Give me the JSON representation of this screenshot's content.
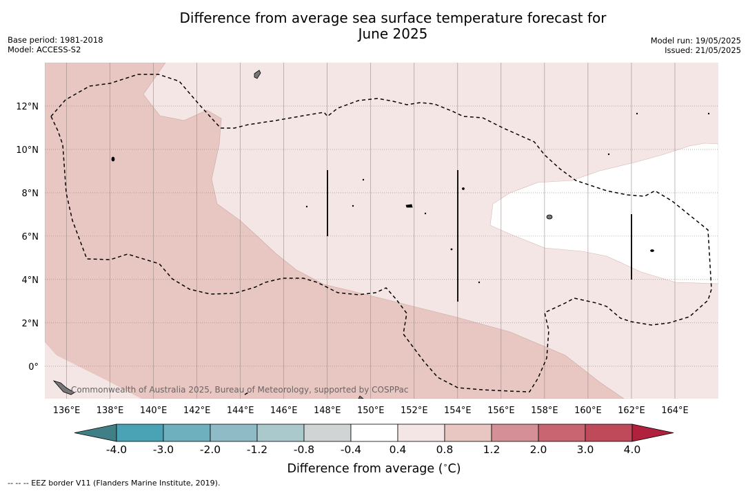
{
  "title": {
    "line1": "Difference from average sea surface temperature forecast for",
    "line2": "June 2025"
  },
  "meta_left": {
    "base_period": "Base period: 1981-2018",
    "model": "Model: ACCESS-S2"
  },
  "meta_right": {
    "model_run": "Model run: 19/05/2025",
    "issued": "Issued: 21/05/2025"
  },
  "map": {
    "lon_range": [
      135,
      166
    ],
    "lat_range": [
      -1.5,
      14
    ],
    "x_tick_labels": [
      "136°E",
      "138°E",
      "140°E",
      "142°E",
      "144°E",
      "146°E",
      "148°E",
      "150°E",
      "152°E",
      "154°E",
      "156°E",
      "158°E",
      "160°E",
      "162°E",
      "164°E"
    ],
    "y_tick_labels": [
      "12°N",
      "10°N",
      "8°N",
      "6°N",
      "4°N",
      "2°N",
      "0°"
    ],
    "copyright": "Commonwealth of Australia 2025, Bureau of Meteorology, supported by COSPPac",
    "colors": {
      "band_0p8_1p2": "#e8c6c1",
      "band_0p4_0p8": "#f4e6e4",
      "band_m0p4_0p4": "#ffffff",
      "eez_line": "#000000"
    }
  },
  "colorbar": {
    "tick_labels": [
      "-4.0",
      "-3.0",
      "-2.0",
      "-1.2",
      "-0.8",
      "-0.4",
      "0.4",
      "0.8",
      "1.2",
      "2.0",
      "3.0",
      "4.0"
    ],
    "colors": [
      "#3f7f85",
      "#4aa3b5",
      "#6fb0be",
      "#8fbbc6",
      "#a9c9cd",
      "#d1d4d4",
      "#ffffff",
      "#f4e6e4",
      "#e8c6c1",
      "#d58f96",
      "#c86570",
      "#bf4a5a",
      "#b0213e"
    ],
    "label": "Difference from average ($^\\circ$C)"
  },
  "footer": "--  --  -- EEZ border V11 (Flanders Marine Institute, 2019)."
}
